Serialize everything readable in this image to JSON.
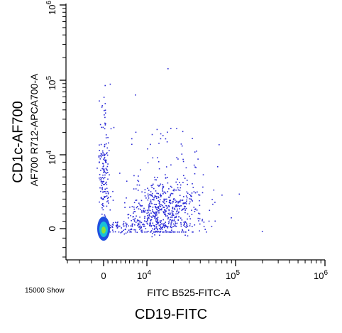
{
  "titles": {
    "outer_x": "CD19-FITC",
    "inner_x": "FITC B525-FITC-A",
    "outer_y": "CD1c-AF700",
    "inner_y": "AF700 R712-APCA700-A",
    "event_count": "15000 Show"
  },
  "chart_data": {
    "type": "scatter",
    "xlabel": "FITC B525-FITC-A",
    "ylabel": "AF700 R712-APCA700-A",
    "x_scale": "biexponential",
    "y_scale": "biexponential",
    "x_ticks": [
      "0",
      "10^4",
      "10^5",
      "10^6"
    ],
    "y_ticks": [
      "0",
      "10^4",
      "10^5",
      "10^6"
    ],
    "x_tick_values": [
      0,
      10000,
      100000,
      1000000
    ],
    "y_tick_values": [
      0,
      10000,
      100000,
      1000000
    ],
    "events_shown": 15000,
    "colors": {
      "dots": "#2b2bd6",
      "density_low": "#1f4fe0",
      "density_mid": "#19c0d8",
      "density_high": "#8be23a",
      "axis": "#000000"
    },
    "populations": [
      {
        "label": "dense negative cluster",
        "x": 0,
        "y": 0
      },
      {
        "label": "CD19+ scattered events",
        "x_range": [
          3000,
          80000
        ],
        "y_range": [
          0,
          15000
        ]
      }
    ]
  }
}
